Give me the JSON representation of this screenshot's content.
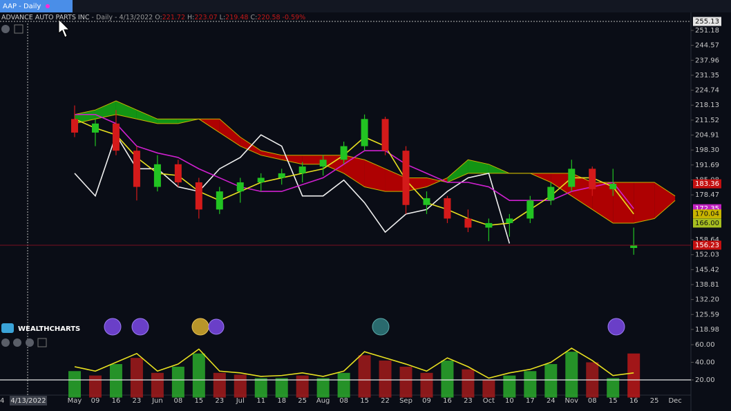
{
  "tab": "AAP - Daily",
  "header": {
    "name": "ADVANCE AUTO PARTS INC",
    "interval": "- Daily -",
    "date": "4/13/2022",
    "readout": [
      {
        "key": "O:",
        "value": "221.72"
      },
      {
        "key": "H:",
        "value": "223.07"
      },
      {
        "key": "L:",
        "value": "219.48"
      },
      {
        "key": "C:",
        "value": "220.58"
      }
    ],
    "change": "-0.59%"
  },
  "logo": "WEALTHCHARTS",
  "chart_data": {
    "type": "candlestick",
    "x_partial_label": "4",
    "crosshair_date": "4/13/2022",
    "categories": [
      "May",
      "09",
      "16",
      "23",
      "Jun",
      "08",
      "15",
      "23",
      "Jul",
      "11",
      "18",
      "25",
      "Aug",
      "08",
      "15",
      "22",
      "Sep",
      "09",
      "16",
      "23",
      "Oct",
      "10",
      "17",
      "24",
      "Nov",
      "08",
      "15",
      "16",
      "25",
      "Dec"
    ],
    "candles": {
      "open": [
        212,
        206,
        210,
        198,
        182,
        192,
        184,
        172,
        180,
        184,
        186,
        188,
        191,
        194,
        200,
        212,
        198,
        174,
        177,
        168,
        164,
        166,
        168,
        176,
        182,
        190,
        181,
        155,
        null,
        null
      ],
      "high": [
        218,
        212,
        216,
        200,
        196,
        194,
        186,
        182,
        186,
        188,
        190,
        193,
        196,
        202,
        214,
        213,
        200,
        180,
        178,
        172,
        168,
        170,
        178,
        184,
        194,
        191,
        190,
        164,
        null,
        null
      ],
      "low": [
        204,
        200,
        196,
        176,
        180,
        182,
        168,
        170,
        175,
        180,
        183,
        184,
        187,
        192,
        198,
        196,
        170,
        170,
        166,
        162,
        158,
        160,
        166,
        174,
        180,
        178,
        178,
        152,
        null,
        null
      ],
      "close": [
        206,
        210,
        198,
        182,
        192,
        184,
        172,
        180,
        184,
        186,
        188,
        191,
        194,
        200,
        212,
        198,
        174,
        177,
        168,
        164,
        166,
        168,
        176,
        182,
        190,
        181,
        183.36,
        156.23,
        null,
        null
      ],
      "up_color": "#22c322",
      "down_color": "#d41a1a"
    },
    "cloud": {
      "span_a": [
        214,
        216,
        220,
        216,
        212,
        212,
        212,
        206,
        200,
        196,
        194,
        192,
        192,
        188,
        182,
        180,
        180,
        182,
        186,
        194,
        192,
        188,
        188,
        184,
        178,
        172,
        166,
        166,
        168,
        176
      ],
      "span_b": [
        210,
        212,
        214,
        212,
        210,
        210,
        212,
        212,
        204,
        198,
        196,
        196,
        196,
        196,
        194,
        190,
        186,
        186,
        184,
        188,
        188,
        188,
        188,
        188,
        188,
        184,
        184,
        184,
        184,
        178
      ],
      "up_color": "#14a314",
      "down_color": "#c00000"
    },
    "series": [
      {
        "color": "#f0f0f0",
        "values": [
          188,
          178,
          205,
          190,
          190,
          182,
          180,
          190,
          195,
          205,
          200,
          178,
          178,
          185,
          175,
          162,
          170,
          172,
          180,
          186,
          188,
          157,
          null,
          null,
          null,
          null,
          null,
          null,
          null,
          null
        ]
      },
      {
        "color": "#d020d0",
        "values": [
          214,
          214,
          210,
          200,
          197,
          195,
          190,
          186,
          182,
          180,
          180,
          183,
          186,
          192,
          198,
          198,
          192,
          188,
          184,
          184,
          182,
          176,
          176,
          176,
          180,
          182,
          184,
          172.35,
          null,
          null
        ]
      },
      {
        "color": "#e8e020",
        "values": [
          212,
          208,
          205,
          195,
          188,
          187,
          180,
          176,
          180,
          184,
          186,
          188,
          190,
          196,
          204,
          200,
          185,
          175,
          172,
          168,
          165,
          166,
          172,
          178,
          186,
          186,
          182,
          170.04,
          null,
          null
        ]
      }
    ],
    "ylim": [
      115.6,
      254.23
    ],
    "yticks": [
      251.18,
      244.57,
      237.96,
      231.35,
      224.74,
      218.13,
      211.52,
      204.91,
      {
        "value": 198.3,
        "label": "198.30"
      },
      191.69,
      185.08,
      178.47,
      158.64,
      152.03,
      145.42,
      138.81,
      {
        "value": 132.2,
        "label": "132.20"
      },
      125.59,
      118.98
    ],
    "price_labels": [
      {
        "value": 255.13,
        "label": "255.13",
        "color": "#e6e6e6",
        "text_color": "#111111",
        "line": "dotted"
      },
      {
        "value": 183.36,
        "label": "183.36",
        "color": "#c41010",
        "text_color": "#ffffff"
      },
      {
        "value": 172.35,
        "label": "172.35",
        "color": "#c020c0",
        "text_color": "#ffffff"
      },
      {
        "value": 170.04,
        "label": "170.04",
        "color": "#c8b400",
        "text_color": "#111111"
      },
      {
        "value": 166,
        "label": "166.00",
        "color": "#a8c020",
        "text_color": "#111111"
      },
      {
        "value": 156.23,
        "label": "156.23",
        "color": "#c41010",
        "text_color": "#ffffff",
        "line": "solid"
      }
    ],
    "oscillator": {
      "ylim": [
        0,
        70
      ],
      "yticks": [
        {
          "value": 60,
          "label": "60.00"
        },
        {
          "value": 40,
          "label": "40.00"
        },
        {
          "value": 20,
          "label": "20.00"
        }
      ],
      "reference_line": 20,
      "hist": [
        30,
        25,
        38,
        45,
        28,
        35,
        50,
        28,
        26,
        22,
        22,
        25,
        22,
        28,
        48,
        42,
        35,
        28,
        42,
        32,
        20,
        25,
        30,
        38,
        52,
        40,
        22,
        50,
        null,
        null
      ],
      "hist_colors": [
        "#2fbf2f",
        "#b71c1c",
        "#2fbf2f",
        "#b71c1c",
        "#b71c1c",
        "#2fbf2f",
        "#2fbf2f",
        "#b71c1c",
        "#b71c1c",
        "#2fbf2f",
        "#2fbf2f",
        "#b71c1c",
        "#2fbf2f",
        "#2fbf2f",
        "#b71c1c",
        "#b71c1c",
        "#b71c1c",
        "#b71c1c",
        "#2fbf2f",
        "#b71c1c",
        "#b71c1c",
        "#2fbf2f",
        "#2fbf2f",
        "#2fbf2f",
        "#2fbf2f",
        "#b71c1c",
        "#2fbf2f",
        "#d41a1a",
        null,
        null
      ],
      "line": {
        "color": "#e8e020",
        "values": [
          35,
          30,
          40,
          50,
          30,
          38,
          55,
          30,
          28,
          24,
          25,
          28,
          24,
          30,
          52,
          45,
          38,
          30,
          45,
          35,
          22,
          28,
          32,
          40,
          56,
          42,
          25,
          28,
          null,
          null
        ]
      }
    }
  }
}
